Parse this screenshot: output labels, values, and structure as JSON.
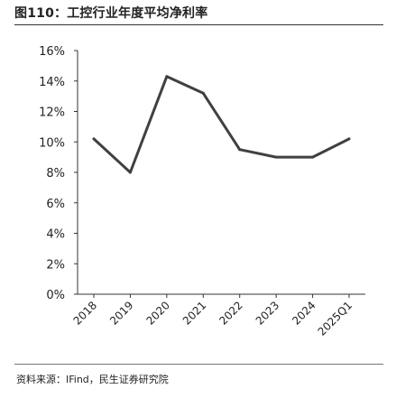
{
  "header": {
    "title": "图110：工控行业年度平均净利率"
  },
  "source": {
    "text": "资料来源：IFind，民生证券研究院"
  },
  "colors": {
    "line": "#404040",
    "axis": "#333333",
    "rule": "#333333"
  },
  "chart_data": {
    "type": "line",
    "title": "工控行业年度平均净利率",
    "xlabel": "",
    "ylabel": "",
    "categories": [
      "2018",
      "2019",
      "2020",
      "2021",
      "2022",
      "2023",
      "2024",
      "2025Q1"
    ],
    "series": [
      {
        "values": [
          10.2,
          8.0,
          14.3,
          13.2,
          9.5,
          9.0,
          9.0,
          10.2
        ]
      }
    ],
    "ylim": [
      0,
      16
    ],
    "yticks": [
      0,
      2,
      4,
      6,
      8,
      10,
      12,
      14,
      16
    ],
    "ytick_labels": [
      "0%",
      "2%",
      "4%",
      "6%",
      "8%",
      "10%",
      "12%",
      "14%",
      "16%"
    ],
    "grid": false,
    "legend": "none"
  }
}
